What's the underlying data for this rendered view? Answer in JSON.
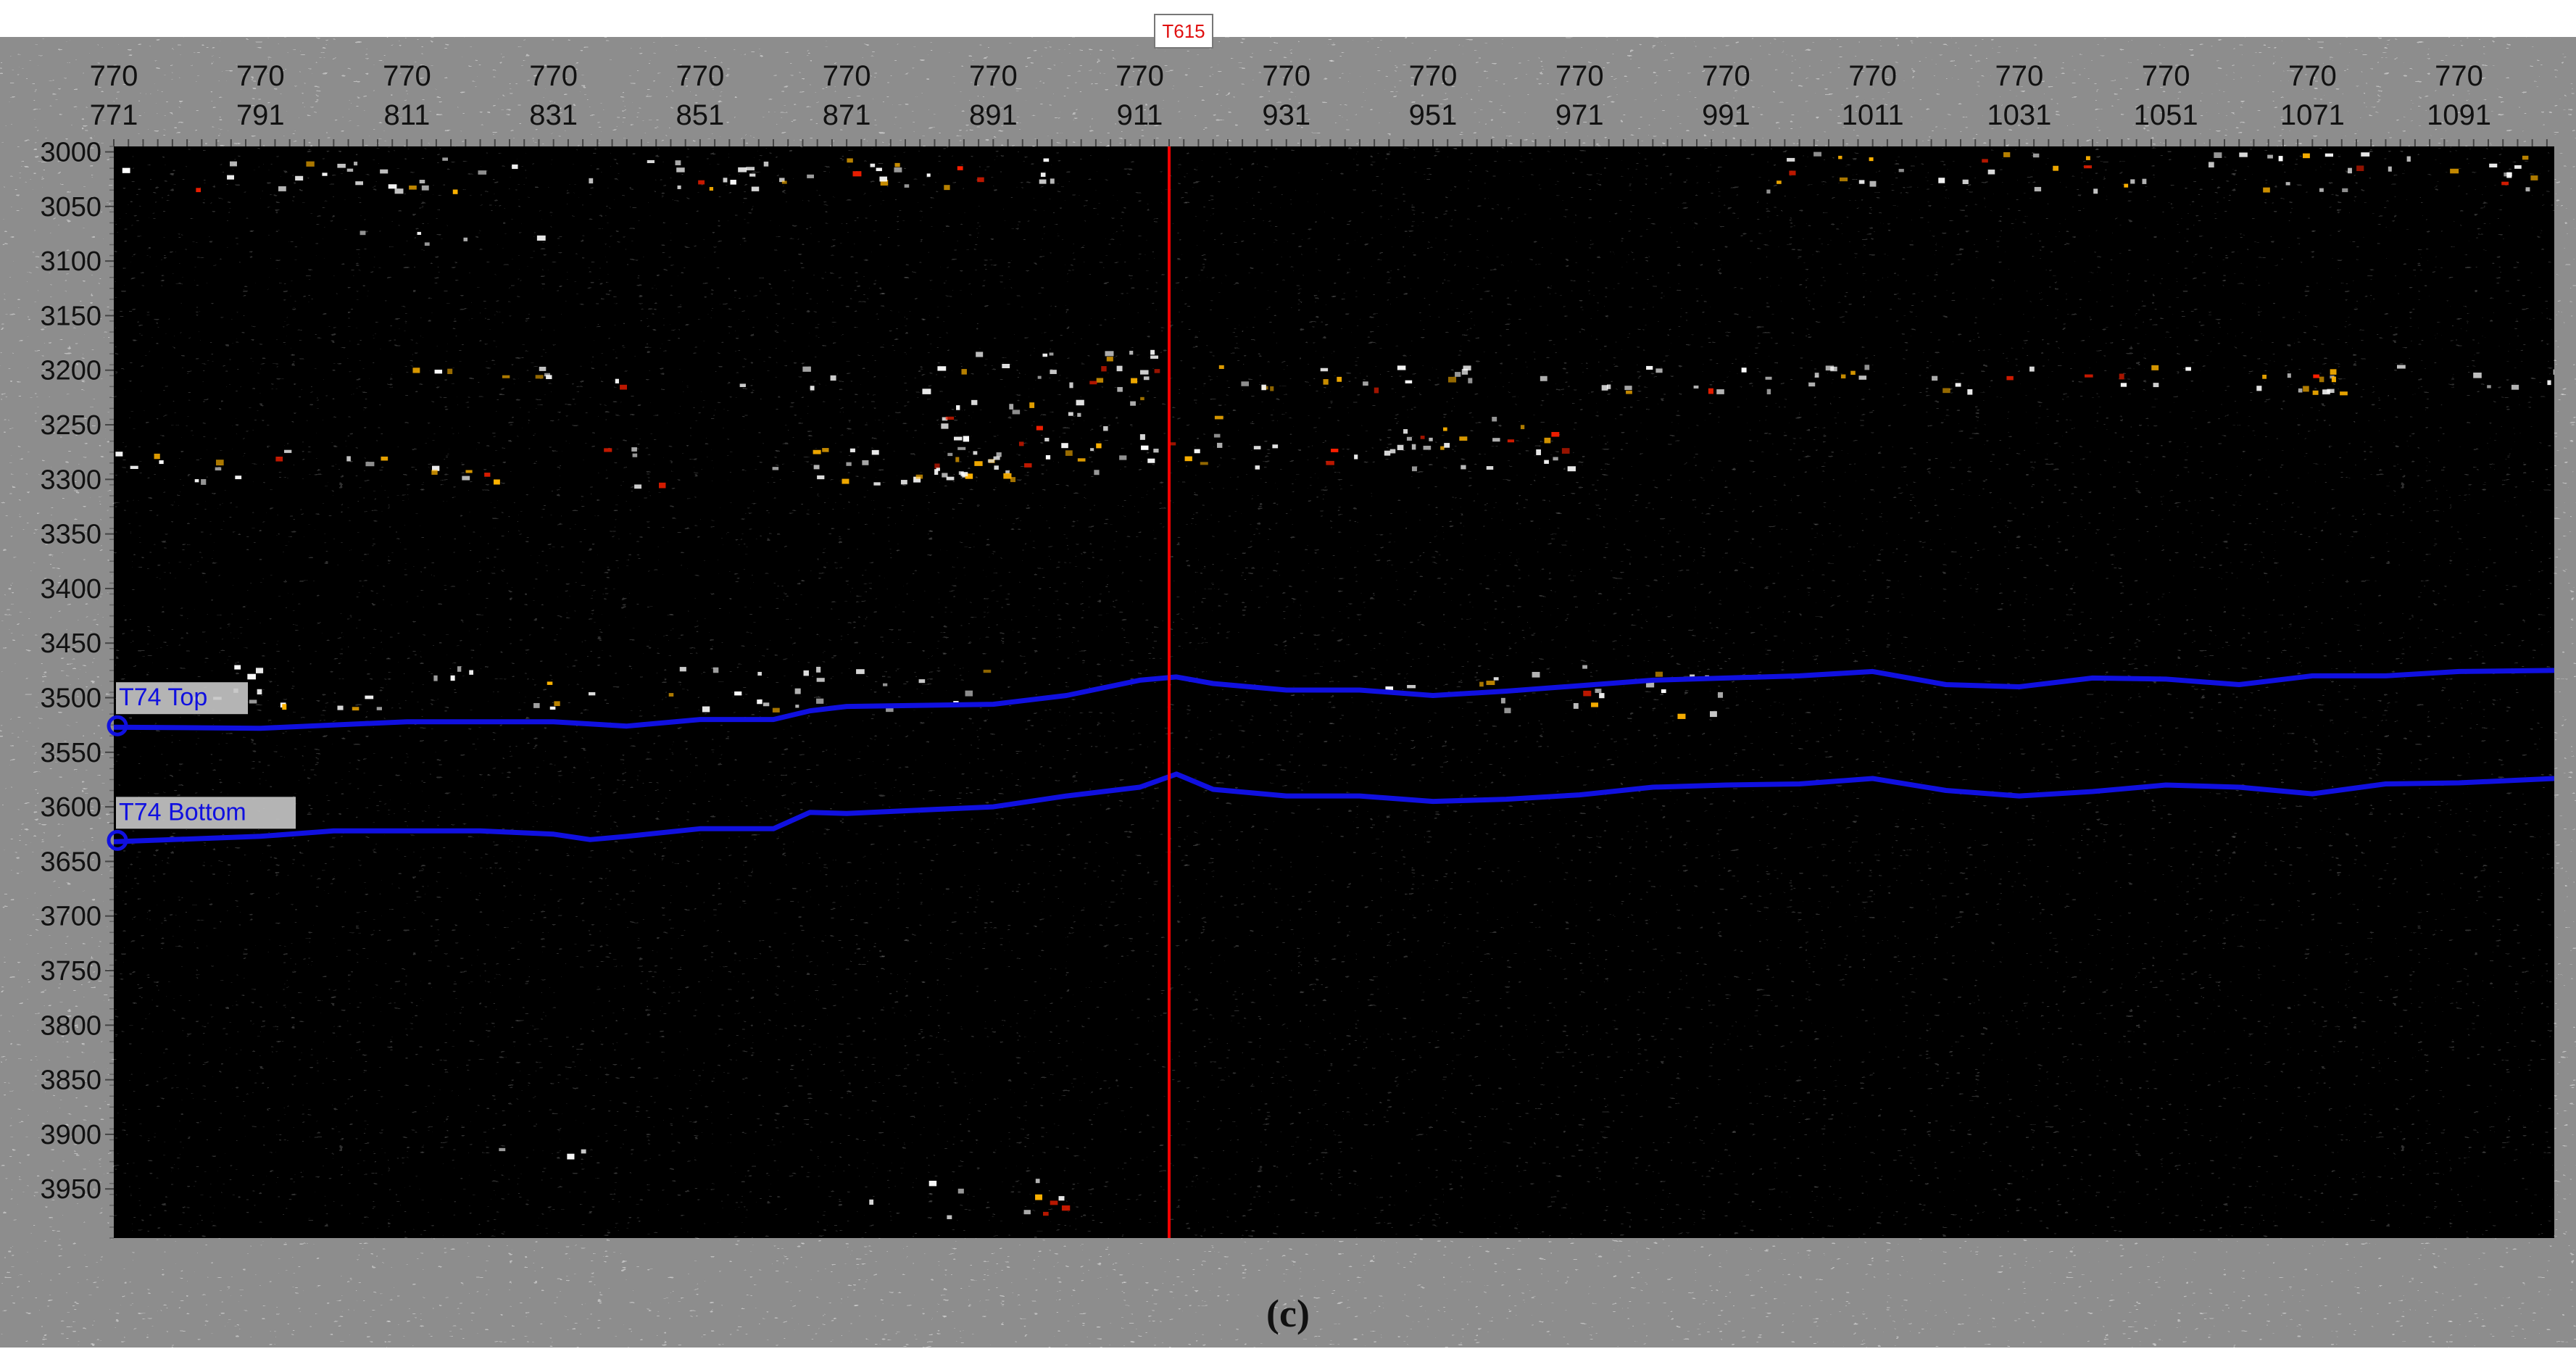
{
  "chart_data": {
    "type": "heatmap",
    "title": "",
    "xlabel": "",
    "ylabel": "",
    "inline_label": "770",
    "crosslines": [
      771,
      791,
      811,
      831,
      851,
      871,
      891,
      911,
      931,
      951,
      971,
      991,
      1011,
      1031,
      1051,
      1071,
      1091
    ],
    "xlim": [
      771,
      1104
    ],
    "y_ticks": [
      3000,
      3050,
      3100,
      3150,
      3200,
      3250,
      3300,
      3350,
      3400,
      3450,
      3500,
      3550,
      3600,
      3650,
      3700,
      3750,
      3800,
      3850,
      3900,
      3950
    ],
    "ylim": [
      2995,
      3995
    ],
    "well": {
      "name": "T615",
      "crossline": 915,
      "color": "#ff0000"
    },
    "horizons": [
      {
        "name": "T74 Top",
        "color": "#1010e0",
        "x": [
          771,
          791,
          811,
          831,
          841,
          851,
          861,
          866,
          871,
          881,
          891,
          901,
          911,
          916,
          921,
          931,
          941,
          951,
          961,
          971,
          981,
          991,
          1001,
          1011,
          1021,
          1031,
          1041,
          1051,
          1061,
          1071,
          1081,
          1091,
          1104
        ],
        "y": [
          3527,
          3528,
          3522,
          3522,
          3526,
          3520,
          3520,
          3512,
          3508,
          3507,
          3506,
          3498,
          3484,
          3481,
          3487,
          3493,
          3493,
          3498,
          3494,
          3489,
          3484,
          3482,
          3480,
          3476,
          3488,
          3490,
          3482,
          3483,
          3488,
          3480,
          3480,
          3476,
          3475
        ]
      },
      {
        "name": "T74 Bottom",
        "color": "#1010e0",
        "x": [
          771,
          791,
          801,
          811,
          821,
          831,
          836,
          841,
          851,
          861,
          866,
          871,
          881,
          891,
          901,
          911,
          916,
          921,
          931,
          941,
          951,
          961,
          971,
          981,
          991,
          1001,
          1011,
          1021,
          1031,
          1041,
          1051,
          1061,
          1071,
          1081,
          1091,
          1104
        ],
        "y": [
          3632,
          3627,
          3622,
          3622,
          3622,
          3625,
          3630,
          3627,
          3620,
          3620,
          3605,
          3606,
          3603,
          3600,
          3590,
          3582,
          3570,
          3584,
          3590,
          3590,
          3595,
          3593,
          3589,
          3582,
          3580,
          3579,
          3574,
          3585,
          3590,
          3586,
          3580,
          3582,
          3588,
          3579,
          3578,
          3574
        ]
      }
    ],
    "colormap": [
      "#000000",
      "#ffffff",
      "#ffb300",
      "#ff2000"
    ],
    "bright_bands": [
      {
        "x": [
          771,
          901
        ],
        "y": [
          3005,
          3035
        ],
        "level": 0.85
      },
      {
        "x": [
          801,
          831
        ],
        "y": [
          3070,
          3085
        ],
        "level": 0.6
      },
      {
        "x": [
          811,
          871
        ],
        "y": [
          3195,
          3215
        ],
        "level": 0.7
      },
      {
        "x": [
          881,
          915
        ],
        "y": [
          3180,
          3300
        ],
        "level": 0.9
      },
      {
        "x": [
          915,
          971
        ],
        "y": [
          3240,
          3290
        ],
        "level": 0.85
      },
      {
        "x": [
          921,
          1104
        ],
        "y": [
          3195,
          3220
        ],
        "level": 0.9
      },
      {
        "x": [
          991,
          1104
        ],
        "y": [
          3000,
          3035
        ],
        "level": 0.75
      },
      {
        "x": [
          871,
          895
        ],
        "y": [
          3260,
          3300
        ],
        "level": 0.8
      },
      {
        "x": [
          771,
          901
        ],
        "y": [
          3270,
          3305
        ],
        "level": 0.55
      },
      {
        "x": [
          781,
          891
        ],
        "y": [
          3470,
          3510
        ],
        "level": 0.6
      },
      {
        "x": [
          941,
          991
        ],
        "y": [
          3470,
          3520
        ],
        "level": 0.55
      },
      {
        "x": [
          871,
          901
        ],
        "y": [
          3935,
          3975
        ],
        "level": 0.55
      },
      {
        "x": [
          821,
          841
        ],
        "y": [
          3900,
          3920
        ],
        "level": 0.45
      }
    ]
  },
  "caption": "(c)"
}
